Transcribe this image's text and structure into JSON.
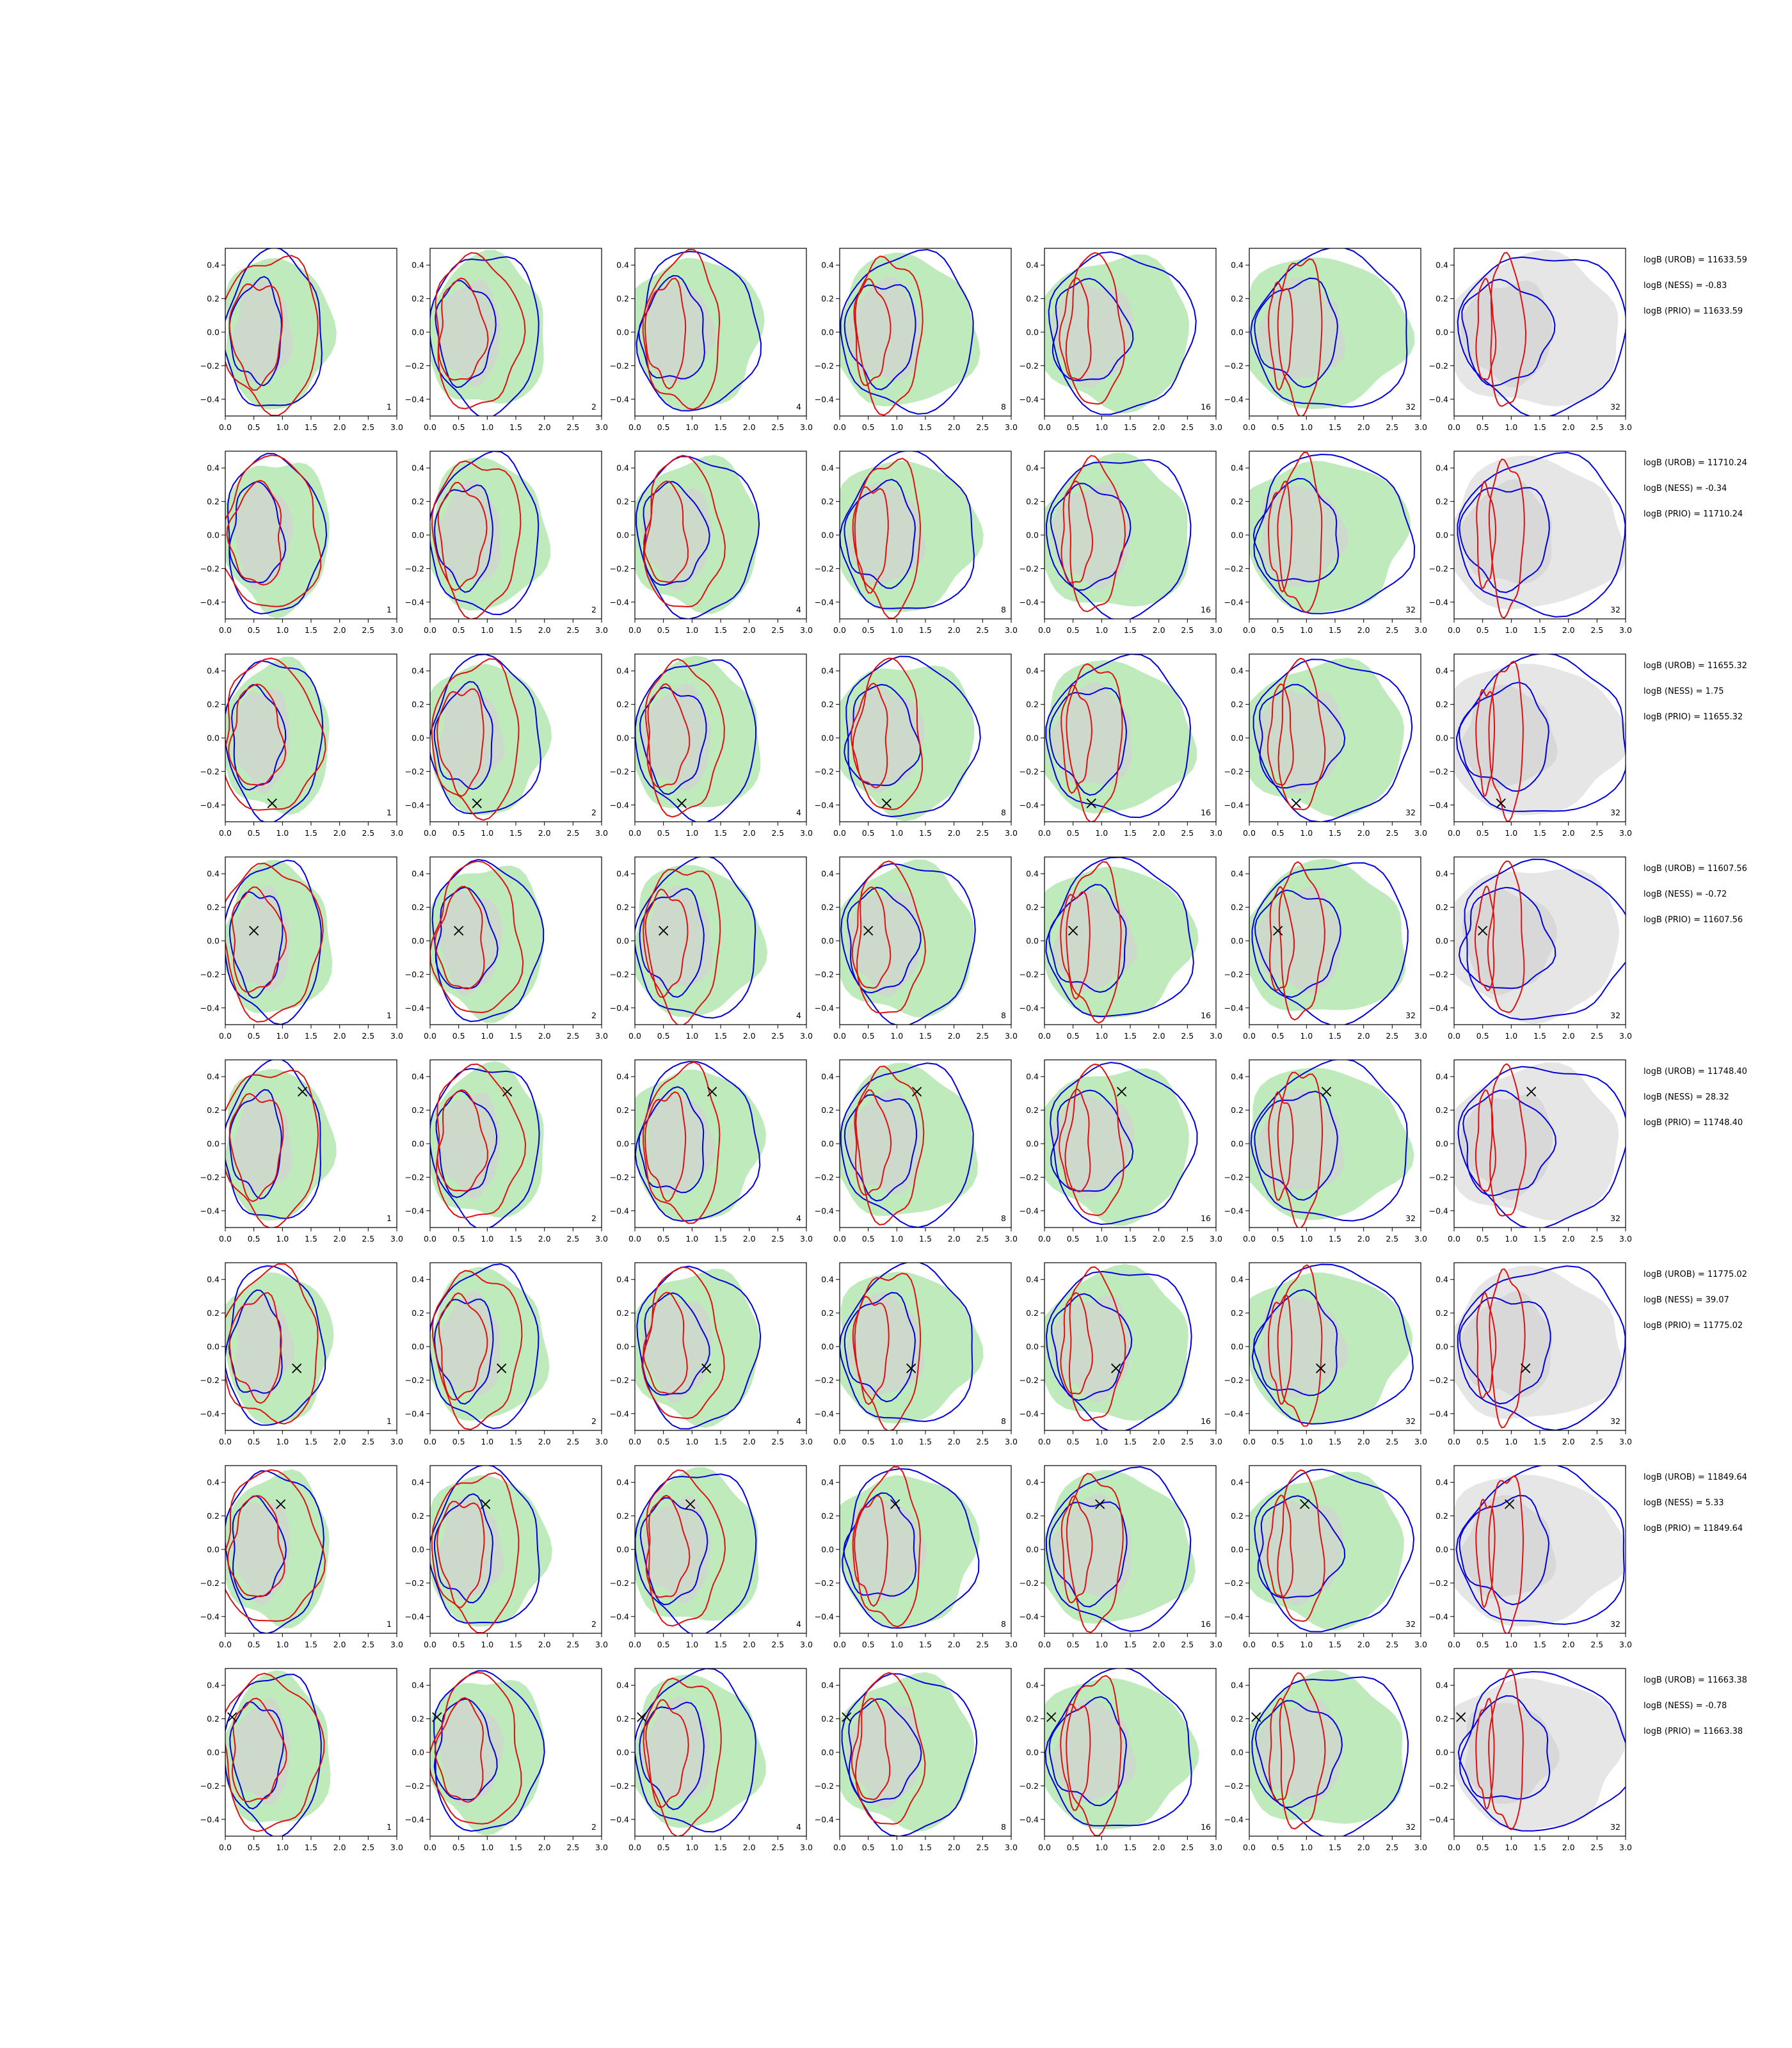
{
  "chart_data": {
    "type": "contour-grid",
    "rows": 8,
    "columns": 7,
    "xlim": [
      0.0,
      3.0
    ],
    "ylim": [
      -0.5,
      0.5
    ],
    "xticks": [
      "0.0",
      "0.5",
      "1.0",
      "1.5",
      "2.0",
      "2.5",
      "3.0"
    ],
    "yticks": [
      "0.4",
      "0.2",
      "0.0",
      "−0.2",
      "−0.4"
    ],
    "column_labels": [
      "1",
      "2",
      "4",
      "8",
      "16",
      "32",
      "32"
    ],
    "colors": {
      "green_fill": "#b4e8b0",
      "grey_fill": "#d2d2d2",
      "blue_line": "#0000dd",
      "red_line": "#dd1111",
      "marker": "#000000"
    },
    "row_annotations": [
      {
        "urob": "logB (UROB) = 11633.59",
        "ness": "logB (NESS) = -0.83",
        "prio": "logB (PRIO) = 11633.59",
        "marker": null
      },
      {
        "urob": "logB (UROB) = 11710.24",
        "ness": "logB (NESS) = -0.34",
        "prio": "logB (PRIO) = 11710.24",
        "marker": null
      },
      {
        "urob": "logB (UROB) = 11655.32",
        "ness": "logB (NESS) = 1.75",
        "prio": "logB (PRIO) = 11655.32",
        "marker": [
          0.82,
          -0.39
        ]
      },
      {
        "urob": "logB (UROB) = 11607.56",
        "ness": "logB (NESS) = -0.72",
        "prio": "logB (PRIO) = 11607.56",
        "marker": [
          0.5,
          0.06
        ]
      },
      {
        "urob": "logB (UROB) = 11748.40",
        "ness": "logB (NESS) = 28.32",
        "prio": "logB (PRIO) = 11748.40",
        "marker": [
          1.35,
          0.31
        ]
      },
      {
        "urob": "logB (UROB) = 11775.02",
        "ness": "logB (NESS) = 39.07",
        "prio": "logB (PRIO) = 11775.02",
        "marker": [
          1.25,
          -0.13
        ]
      },
      {
        "urob": "logB (UROB) = 11849.64",
        "ness": "logB (NESS) = 5.33",
        "prio": "logB (PRIO) = 11849.64",
        "marker": [
          0.97,
          0.27
        ]
      },
      {
        "urob": "logB (UROB) = 11663.38",
        "ness": "logB (NESS) = -0.78",
        "prio": "logB (PRIO) = 11663.38",
        "marker": [
          0.12,
          0.21
        ]
      }
    ]
  }
}
